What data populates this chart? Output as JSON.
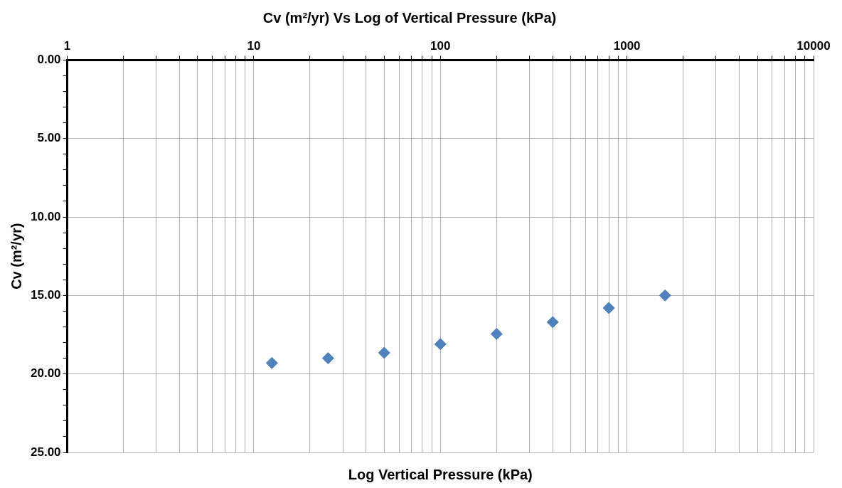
{
  "chart_data": {
    "type": "scatter",
    "title": "Cv (m²/yr) Vs Log of Vertical Pressure (kPa)",
    "xlabel": "Log Vertical Pressure (kPa)",
    "ylabel": "Cv (m²/yr)",
    "x": [
      12.5,
      25,
      50,
      100,
      200,
      400,
      800,
      1600
    ],
    "series": [
      {
        "color": "#4f81bd",
        "values": [
          19.3,
          19.0,
          18.65,
          18.1,
          17.45,
          16.7,
          15.8,
          15.0
        ]
      }
    ],
    "log": "x",
    "marker": "diamond",
    "grid": true,
    "legend": false,
    "xlim": [
      1,
      10000
    ],
    "xticks": [
      1,
      {
        "value": 2,
        "label": null
      },
      {
        "value": 3,
        "label": null
      },
      {
        "value": 4,
        "label": null
      },
      {
        "value": 5,
        "label": null
      },
      {
        "value": 6,
        "label": null
      },
      {
        "value": 7,
        "label": null
      },
      {
        "value": 8,
        "label": null
      },
      {
        "value": 9,
        "label": null
      },
      10,
      {
        "value": 20,
        "label": null
      },
      {
        "value": 30,
        "label": null
      },
      {
        "value": 40,
        "label": null
      },
      {
        "value": 50,
        "label": null
      },
      {
        "value": 60,
        "label": null
      },
      {
        "value": 70,
        "label": null
      },
      {
        "value": 80,
        "label": null
      },
      {
        "value": 90,
        "label": null
      },
      100,
      {
        "value": 200,
        "label": null
      },
      {
        "value": 300,
        "label": null
      },
      {
        "value": 400,
        "label": null
      },
      {
        "value": 500,
        "label": null
      },
      {
        "value": 600,
        "label": null
      },
      {
        "value": 700,
        "label": null
      },
      {
        "value": 800,
        "label": null
      },
      {
        "value": 900,
        "label": null
      },
      1000,
      {
        "value": 2000,
        "label": null
      },
      {
        "value": 3000,
        "label": null
      },
      {
        "value": 4000,
        "label": null
      },
      {
        "value": 5000,
        "label": null
      },
      {
        "value": 6000,
        "label": null
      },
      {
        "value": 7000,
        "label": null
      },
      {
        "value": 8000,
        "label": null
      },
      {
        "value": 9000,
        "label": null
      },
      10000
    ],
    "ylim": [
      25,
      0
    ],
    "yticks": [
      {
        "value": 0,
        "label": "0.00"
      },
      {
        "value": 1,
        "label": null
      },
      {
        "value": 2,
        "label": null
      },
      {
        "value": 3,
        "label": null
      },
      {
        "value": 4,
        "label": null
      },
      {
        "value": 5,
        "label": "5.00"
      },
      {
        "value": 6,
        "label": null
      },
      {
        "value": 7,
        "label": null
      },
      {
        "value": 8,
        "label": null
      },
      {
        "value": 9,
        "label": null
      },
      {
        "value": 10,
        "label": "10.00"
      },
      {
        "value": 11,
        "label": null
      },
      {
        "value": 12,
        "label": null
      },
      {
        "value": 13,
        "label": null
      },
      {
        "value": 14,
        "label": null
      },
      {
        "value": 15,
        "label": "15.00"
      },
      {
        "value": 16,
        "label": null
      },
      {
        "value": 17,
        "label": null
      },
      {
        "value": 18,
        "label": null
      },
      {
        "value": 19,
        "label": null
      },
      {
        "value": 20,
        "label": "20.00"
      },
      {
        "value": 21,
        "label": null
      },
      {
        "value": 22,
        "label": null
      },
      {
        "value": 23,
        "label": null
      },
      {
        "value": 24,
        "label": null
      },
      {
        "value": 25,
        "label": "25.00"
      }
    ]
  }
}
